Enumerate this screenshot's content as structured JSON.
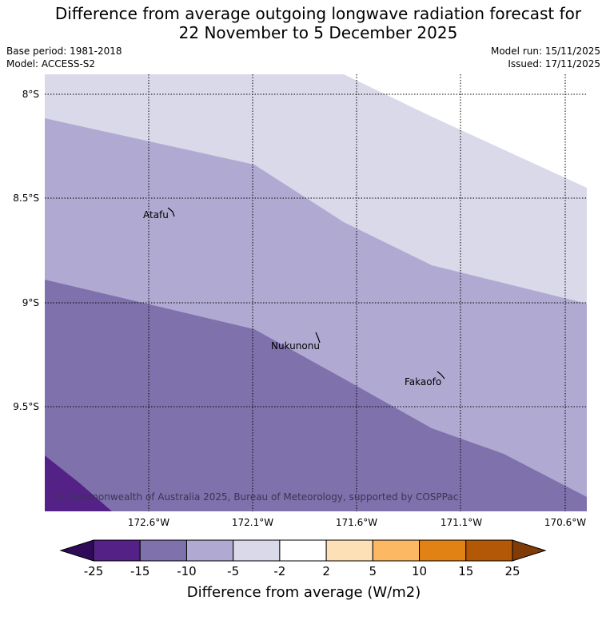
{
  "title": {
    "line1": "Difference from average outgoing longwave radiation forecast for",
    "line2": "22 November to 5 December 2025"
  },
  "meta": {
    "base_period": "Base period: 1981-2018",
    "model": "Model: ACCESS-S2",
    "model_run": "Model run: 15/11/2025",
    "issued": "Issued: 17/11/2025"
  },
  "map": {
    "lat_labels": [
      "8°S",
      "8.5°S",
      "9°S",
      "9.5°S"
    ],
    "lon_labels": [
      "172.6°W",
      "172.1°W",
      "171.6°W",
      "171.1°W",
      "170.6°W"
    ],
    "places": [
      "Atafu",
      "Nukunonu",
      "Fakaofo"
    ],
    "copyright": "© Commonwealth of Australia 2025, Bureau of Meteorology, supported by COSPPac"
  },
  "colorbar": {
    "ticks": [
      "-25",
      "-15",
      "-10",
      "-5",
      "-2",
      "2",
      "5",
      "10",
      "15",
      "25"
    ],
    "colors": [
      "#2e0a59",
      "#542286",
      "#7f71ac",
      "#b0aad2",
      "#d9d9ea",
      "#ffffff",
      "#fee0b6",
      "#fdb863",
      "#e08214",
      "#b35806",
      "#7f3b08"
    ],
    "title": "Difference from average (W/m2)"
  }
}
